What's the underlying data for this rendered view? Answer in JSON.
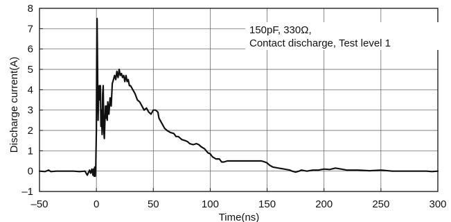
{
  "chart_data": {
    "type": "line",
    "title": "",
    "xlabel": "Time(ns)",
    "ylabel": "Discharge current(A)",
    "xlim": [
      -50,
      300
    ],
    "ylim": [
      -1,
      8
    ],
    "xticks": [
      -50,
      0,
      50,
      100,
      150,
      200,
      250,
      300
    ],
    "xtick_labels": [
      "–50",
      "0",
      "50",
      "100",
      "150",
      "200",
      "250",
      "300"
    ],
    "yticks": [
      -1,
      0,
      1,
      2,
      3,
      4,
      5,
      6,
      7,
      8
    ],
    "ytick_labels": [
      "–1",
      "0",
      "1",
      "2",
      "3",
      "4",
      "5",
      "6",
      "7",
      "8"
    ],
    "grid": true,
    "annotation": [
      "150pF, 330Ω,",
      "Contact discharge, Test level 1"
    ],
    "series": [
      {
        "color": "#111111",
        "points": [
          [
            -50,
            0.0
          ],
          [
            -45,
            -0.02
          ],
          [
            -42,
            0.05
          ],
          [
            -40,
            -0.02
          ],
          [
            -35,
            0.0
          ],
          [
            -30,
            0.0
          ],
          [
            -25,
            0.0
          ],
          [
            -20,
            0.0
          ],
          [
            -15,
            -0.02
          ],
          [
            -10,
            0.0
          ],
          [
            -8,
            -0.2
          ],
          [
            -6,
            0.05
          ],
          [
            -5,
            -0.1
          ],
          [
            -4,
            0.1
          ],
          [
            -3,
            -0.2
          ],
          [
            -2.5,
            0.1
          ],
          [
            -2,
            -0.25
          ],
          [
            -1.5,
            0.2
          ],
          [
            -1,
            -0.25
          ],
          [
            -0.5,
            0.3
          ],
          [
            0,
            2.0
          ],
          [
            0.3,
            5.5
          ],
          [
            0.6,
            7.5
          ],
          [
            0.9,
            6.0
          ],
          [
            1.2,
            4.0
          ],
          [
            1.5,
            2.5
          ],
          [
            2,
            3.8
          ],
          [
            2.5,
            4.2
          ],
          [
            3,
            3.5
          ],
          [
            3.5,
            4.2
          ],
          [
            4,
            2.2
          ],
          [
            4.5,
            3.0
          ],
          [
            5,
            1.8
          ],
          [
            5.5,
            3.8
          ],
          [
            6,
            4.2
          ],
          [
            6.5,
            2.0
          ],
          [
            7,
            1.6
          ],
          [
            7.5,
            2.5
          ],
          [
            8,
            3.2
          ],
          [
            8.5,
            2.6
          ],
          [
            9,
            3.2
          ],
          [
            9.5,
            2.5
          ],
          [
            10,
            3.4
          ],
          [
            11,
            2.8
          ],
          [
            12,
            3.6
          ],
          [
            13,
            3.2
          ],
          [
            14,
            4.3
          ],
          [
            15,
            4.5
          ],
          [
            16,
            4.7
          ],
          [
            17,
            4.5
          ],
          [
            18,
            4.9
          ],
          [
            19,
            4.6
          ],
          [
            20,
            5.0
          ],
          [
            21,
            4.7
          ],
          [
            22,
            4.8
          ],
          [
            23,
            4.6
          ],
          [
            24,
            4.7
          ],
          [
            25,
            4.4
          ],
          [
            26,
            4.7
          ],
          [
            27,
            4.4
          ],
          [
            28,
            4.5
          ],
          [
            29,
            4.2
          ],
          [
            30,
            4.2
          ],
          [
            32,
            4.0
          ],
          [
            34,
            3.8
          ],
          [
            36,
            3.5
          ],
          [
            38,
            3.4
          ],
          [
            40,
            3.2
          ],
          [
            42,
            3.0
          ],
          [
            44,
            3.1
          ],
          [
            46,
            2.9
          ],
          [
            48,
            2.8
          ],
          [
            50,
            3.0
          ],
          [
            52,
            3.0
          ],
          [
            54,
            2.9
          ],
          [
            55,
            2.6
          ],
          [
            56,
            2.5
          ],
          [
            58,
            2.3
          ],
          [
            60,
            2.1
          ],
          [
            62,
            2.0
          ],
          [
            65,
            1.9
          ],
          [
            68,
            1.85
          ],
          [
            70,
            1.7
          ],
          [
            72,
            1.7
          ],
          [
            75,
            1.55
          ],
          [
            78,
            1.5
          ],
          [
            80,
            1.45
          ],
          [
            82,
            1.35
          ],
          [
            85,
            1.3
          ],
          [
            88,
            1.35
          ],
          [
            90,
            1.3
          ],
          [
            92,
            1.2
          ],
          [
            95,
            1.1
          ],
          [
            98,
            0.9
          ],
          [
            100,
            0.85
          ],
          [
            102,
            0.7
          ],
          [
            105,
            0.6
          ],
          [
            108,
            0.6
          ],
          [
            110,
            0.45
          ],
          [
            112,
            0.45
          ],
          [
            115,
            0.5
          ],
          [
            118,
            0.5
          ],
          [
            120,
            0.5
          ],
          [
            125,
            0.5
          ],
          [
            130,
            0.5
          ],
          [
            135,
            0.5
          ],
          [
            140,
            0.5
          ],
          [
            145,
            0.5
          ],
          [
            148,
            0.45
          ],
          [
            150,
            0.4
          ],
          [
            152,
            0.3
          ],
          [
            155,
            0.2
          ],
          [
            160,
            0.15
          ],
          [
            165,
            0.1
          ],
          [
            170,
            0.05
          ],
          [
            172,
            0.0
          ],
          [
            175,
            -0.05
          ],
          [
            178,
            0.0
          ],
          [
            180,
            0.05
          ],
          [
            185,
            0.0
          ],
          [
            190,
            0.05
          ],
          [
            195,
            0.05
          ],
          [
            200,
            0.1
          ],
          [
            205,
            0.08
          ],
          [
            210,
            0.15
          ],
          [
            215,
            0.1
          ],
          [
            220,
            0.05
          ],
          [
            230,
            0.05
          ],
          [
            240,
            0.02
          ],
          [
            250,
            0.05
          ],
          [
            260,
            0.0
          ],
          [
            270,
            0.0
          ],
          [
            280,
            0.0
          ],
          [
            290,
            0.0
          ],
          [
            295,
            -0.02
          ],
          [
            300,
            0.0
          ]
        ]
      }
    ]
  }
}
